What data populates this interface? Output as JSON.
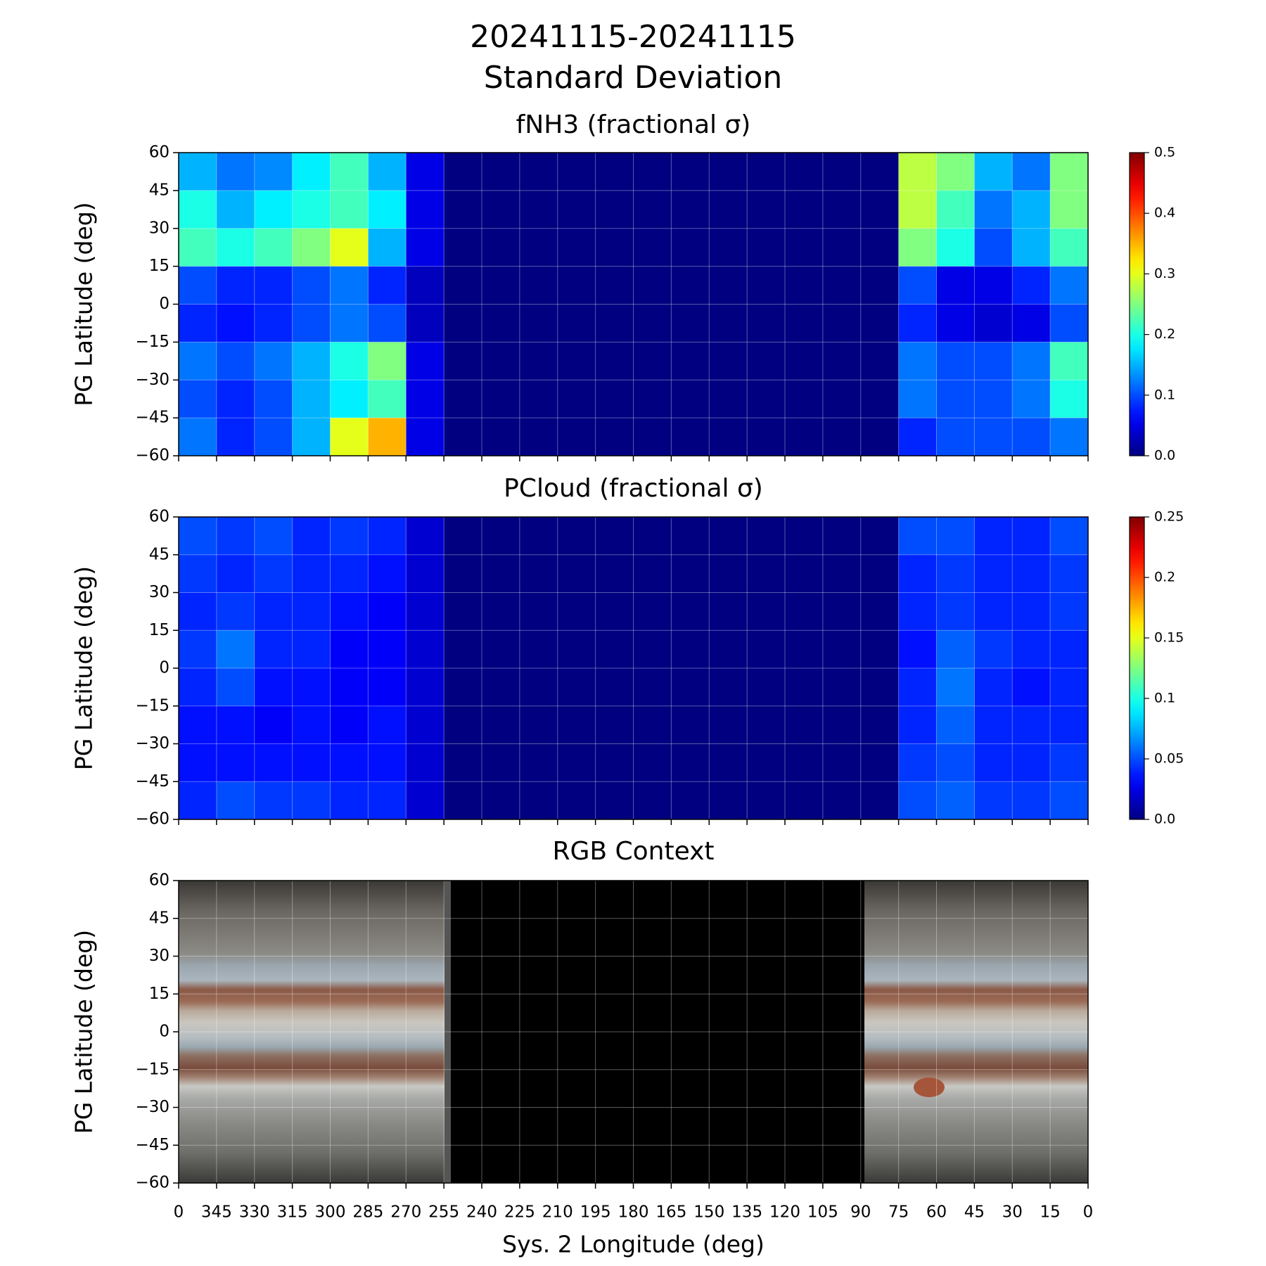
{
  "title": "20241115-20241115",
  "subtitle": "Standard Deviation",
  "chart_data": [
    {
      "type": "heatmap",
      "title": "fNH3 (fractional σ)",
      "ylabel": "PG Latitude (deg)",
      "colormap": "jet",
      "grid": true,
      "xlim": [
        360,
        0
      ],
      "ylim": [
        -60,
        60
      ],
      "yticks": [
        60,
        45,
        30,
        15,
        0,
        {
          "value": -15,
          "label": "−15"
        },
        {
          "value": -30,
          "label": "−30"
        },
        {
          "value": -45,
          "label": "−45"
        },
        {
          "value": -60,
          "label": "−60"
        }
      ],
      "xbins": [
        360,
        345,
        330,
        315,
        300,
        285,
        270,
        255,
        240,
        225,
        210,
        195,
        180,
        165,
        150,
        135,
        120,
        105,
        90,
        75,
        60,
        45,
        30,
        15,
        0
      ],
      "ybins": [
        60,
        45,
        30,
        15,
        0,
        -15,
        -30,
        -45,
        -60
      ],
      "zlim": [
        0,
        0.5
      ],
      "zticks": [
        {
          "value": 0,
          "label": "0.0"
        },
        0.1,
        0.2,
        0.3,
        0.4,
        0.5
      ],
      "z": [
        [
          0.15,
          0.12,
          0.13,
          0.18,
          0.22,
          0.15,
          0.05,
          0,
          0,
          0,
          0,
          0,
          0,
          0,
          0,
          0,
          0,
          0,
          0,
          0.28,
          0.25,
          0.15,
          0.12,
          0.25
        ],
        [
          0.2,
          0.15,
          0.18,
          0.2,
          0.22,
          0.18,
          0.05,
          0,
          0,
          0,
          0,
          0,
          0,
          0,
          0,
          0,
          0,
          0,
          0,
          0.28,
          0.22,
          0.12,
          0.15,
          0.25
        ],
        [
          0.22,
          0.2,
          0.22,
          0.25,
          0.3,
          0.15,
          0.05,
          0,
          0,
          0,
          0,
          0,
          0,
          0,
          0,
          0,
          0,
          0,
          0,
          0.25,
          0.2,
          0.1,
          0.15,
          0.22
        ],
        [
          0.1,
          0.08,
          0.08,
          0.1,
          0.12,
          0.08,
          0.03,
          0,
          0,
          0,
          0,
          0,
          0,
          0,
          0,
          0,
          0,
          0,
          0,
          0.1,
          0.05,
          0.05,
          0.08,
          0.12
        ],
        [
          0.08,
          0.07,
          0.08,
          0.1,
          0.12,
          0.1,
          0.03,
          0,
          0,
          0,
          0,
          0,
          0,
          0,
          0,
          0,
          0,
          0,
          0,
          0.08,
          0.05,
          0.04,
          0.05,
          0.1
        ],
        [
          0.12,
          0.1,
          0.12,
          0.15,
          0.2,
          0.25,
          0.05,
          0,
          0,
          0,
          0,
          0,
          0,
          0,
          0,
          0,
          0,
          0,
          0,
          0.12,
          0.1,
          0.1,
          0.12,
          0.22
        ],
        [
          0.1,
          0.08,
          0.1,
          0.15,
          0.18,
          0.22,
          0.05,
          0,
          0,
          0,
          0,
          0,
          0,
          0,
          0,
          0,
          0,
          0,
          0,
          0.12,
          0.1,
          0.1,
          0.12,
          0.2
        ],
        [
          0.12,
          0.08,
          0.1,
          0.15,
          0.3,
          0.35,
          0.05,
          0,
          0,
          0,
          0,
          0,
          0,
          0,
          0,
          0,
          0,
          0,
          0,
          0.08,
          0.1,
          0.1,
          0.1,
          0.12
        ]
      ]
    },
    {
      "type": "heatmap",
      "title": "PCloud (fractional σ)",
      "ylabel": "PG Latitude (deg)",
      "colormap": "jet",
      "grid": true,
      "xlim": [
        360,
        0
      ],
      "ylim": [
        -60,
        60
      ],
      "yticks": [
        60,
        45,
        30,
        15,
        0,
        {
          "value": -15,
          "label": "−15"
        },
        {
          "value": -30,
          "label": "−30"
        },
        {
          "value": -45,
          "label": "−45"
        },
        {
          "value": -60,
          "label": "−60"
        }
      ],
      "xbins": [
        360,
        345,
        330,
        315,
        300,
        285,
        270,
        255,
        240,
        225,
        210,
        195,
        180,
        165,
        150,
        135,
        120,
        105,
        90,
        75,
        60,
        45,
        30,
        15,
        0
      ],
      "ybins": [
        60,
        45,
        30,
        15,
        0,
        -15,
        -30,
        -45,
        -60
      ],
      "zlim": [
        0,
        0.25
      ],
      "zticks": [
        {
          "value": 0,
          "label": "0.0"
        },
        0.05,
        0.1,
        0.15,
        0.2,
        0.25
      ],
      "z": [
        [
          0.05,
          0.045,
          0.05,
          0.04,
          0.045,
          0.04,
          0.02,
          0,
          0,
          0,
          0,
          0,
          0,
          0,
          0,
          0,
          0,
          0,
          0,
          0.05,
          0.05,
          0.04,
          0.04,
          0.05
        ],
        [
          0.045,
          0.04,
          0.045,
          0.04,
          0.04,
          0.035,
          0.02,
          0,
          0,
          0,
          0,
          0,
          0,
          0,
          0,
          0,
          0,
          0,
          0,
          0.04,
          0.045,
          0.04,
          0.04,
          0.045
        ],
        [
          0.04,
          0.045,
          0.04,
          0.04,
          0.035,
          0.03,
          0.02,
          0,
          0,
          0,
          0,
          0,
          0,
          0,
          0,
          0,
          0,
          0,
          0,
          0.04,
          0.045,
          0.04,
          0.04,
          0.045
        ],
        [
          0.045,
          0.06,
          0.04,
          0.04,
          0.03,
          0.03,
          0.02,
          0,
          0,
          0,
          0,
          0,
          0,
          0,
          0,
          0,
          0,
          0,
          0,
          0.035,
          0.055,
          0.045,
          0.04,
          0.04
        ],
        [
          0.04,
          0.05,
          0.035,
          0.035,
          0.03,
          0.03,
          0.02,
          0,
          0,
          0,
          0,
          0,
          0,
          0,
          0,
          0,
          0,
          0,
          0,
          0.04,
          0.06,
          0.04,
          0.035,
          0.04
        ],
        [
          0.035,
          0.035,
          0.03,
          0.035,
          0.03,
          0.035,
          0.02,
          0,
          0,
          0,
          0,
          0,
          0,
          0,
          0,
          0,
          0,
          0,
          0,
          0.04,
          0.055,
          0.04,
          0.04,
          0.04
        ],
        [
          0.035,
          0.035,
          0.035,
          0.035,
          0.035,
          0.035,
          0.02,
          0,
          0,
          0,
          0,
          0,
          0,
          0,
          0,
          0,
          0,
          0,
          0,
          0.045,
          0.05,
          0.04,
          0.04,
          0.045
        ],
        [
          0.04,
          0.05,
          0.045,
          0.045,
          0.04,
          0.04,
          0.02,
          0,
          0,
          0,
          0,
          0,
          0,
          0,
          0,
          0,
          0,
          0,
          0,
          0.05,
          0.055,
          0.045,
          0.045,
          0.05
        ]
      ]
    },
    {
      "type": "image",
      "title": "RGB Context",
      "ylabel": "PG Latitude (deg)",
      "xlabel": "Sys. 2 Longitude (deg)",
      "grid": true,
      "xlim": [
        360,
        0
      ],
      "ylim": [
        -60,
        60
      ],
      "yticks": [
        60,
        45,
        30,
        15,
        0,
        {
          "value": -15,
          "label": "−15"
        },
        {
          "value": -30,
          "label": "−30"
        },
        {
          "value": -45,
          "label": "−45"
        },
        {
          "value": -60,
          "label": "−60"
        }
      ],
      "xticks": [
        {
          "value": 360,
          "label": "0"
        },
        345,
        330,
        315,
        300,
        285,
        270,
        255,
        240,
        225,
        210,
        195,
        180,
        165,
        150,
        135,
        120,
        105,
        90,
        75,
        60,
        45,
        30,
        15,
        0
      ]
    }
  ]
}
